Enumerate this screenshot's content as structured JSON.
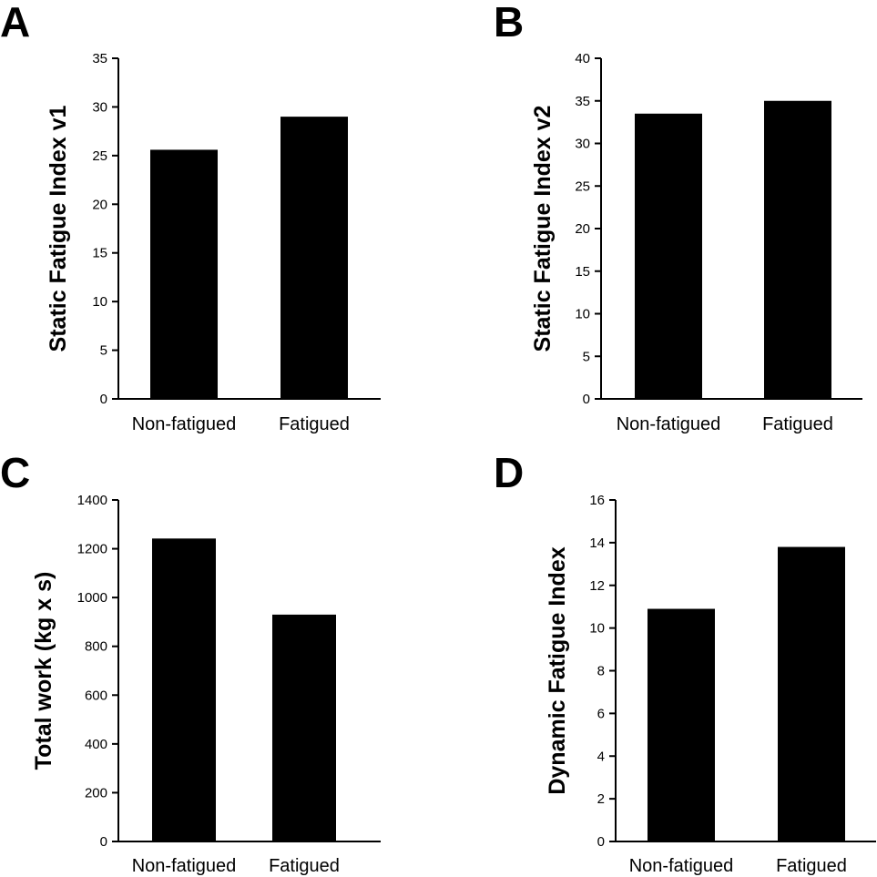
{
  "colors": {
    "bar": "#000000",
    "axis": "#000000",
    "background": "#ffffff"
  },
  "chart_data": [
    {
      "panel": "A",
      "type": "bar",
      "categories": [
        "Non-fatigued",
        "Fatigued"
      ],
      "values": [
        25.6,
        29.0
      ],
      "ylabel": "Static Fatigue Index v1",
      "ylim": [
        0,
        35
      ],
      "yticks": [
        0,
        5,
        10,
        15,
        20,
        25,
        30,
        35
      ],
      "grid": false,
      "legend": "none"
    },
    {
      "panel": "B",
      "type": "bar",
      "categories": [
        "Non-fatigued",
        "Fatigued"
      ],
      "values": [
        33.5,
        35.0
      ],
      "ylabel": "Static Fatigue Index v2",
      "ylim": [
        0,
        40
      ],
      "yticks": [
        0,
        5,
        10,
        15,
        20,
        25,
        30,
        35,
        40
      ],
      "grid": false,
      "legend": "none"
    },
    {
      "panel": "C",
      "type": "bar",
      "categories": [
        "Non-fatigued",
        "Fatigued"
      ],
      "values": [
        1242,
        930
      ],
      "ylabel": "Total work (kg x s)",
      "ylim": [
        0,
        1400
      ],
      "yticks": [
        0,
        200,
        400,
        600,
        800,
        1000,
        1200,
        1400
      ],
      "grid": false,
      "legend": "none"
    },
    {
      "panel": "D",
      "type": "bar",
      "categories": [
        "Non-fatigued",
        "Fatigued"
      ],
      "values": [
        10.9,
        13.8
      ],
      "ylabel": "Dynamic Fatigue Index",
      "ylim": [
        0,
        16
      ],
      "yticks": [
        0,
        2,
        4,
        6,
        8,
        10,
        12,
        14,
        16
      ],
      "grid": false,
      "legend": "none"
    }
  ]
}
